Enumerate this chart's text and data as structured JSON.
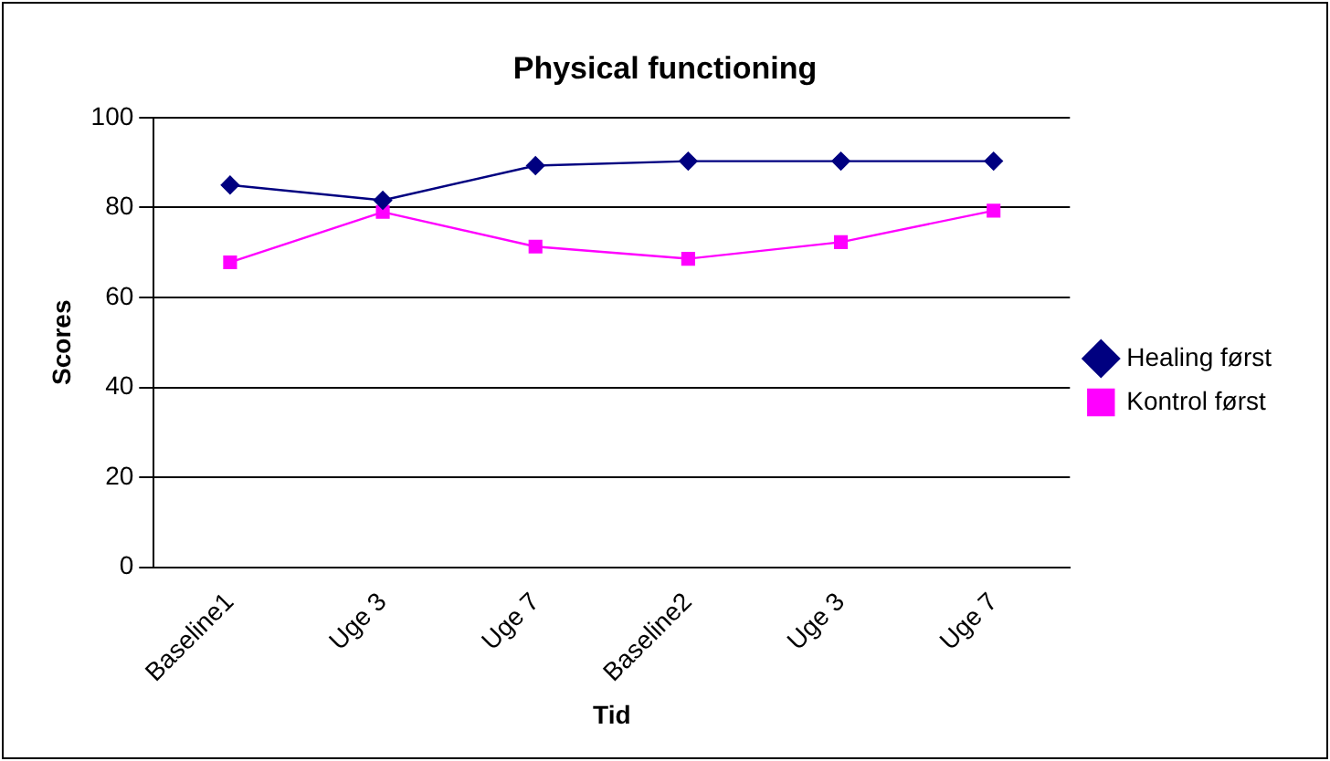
{
  "chart_data": {
    "type": "line",
    "title": "Physical functioning",
    "xlabel": "Tid",
    "ylabel": "Scores",
    "categories": [
      "Baseline1",
      "Uge 3",
      "Uge 7",
      "Baseline2",
      "Uge 3",
      "Uge 7"
    ],
    "series": [
      {
        "name": "Healing først",
        "color": "#000080",
        "marker": "diamond",
        "values": [
          85,
          81.6,
          89.3,
          90.3,
          90.3,
          90.3
        ]
      },
      {
        "name": "Kontrol først",
        "color": "#ff00ff",
        "marker": "square",
        "values": [
          67.8,
          79,
          71.3,
          68.6,
          72.3,
          79.3
        ]
      }
    ],
    "ylim": [
      0,
      100
    ],
    "yticks": [
      0,
      20,
      40,
      60,
      80,
      100
    ],
    "grid": "y",
    "legend": "right"
  }
}
